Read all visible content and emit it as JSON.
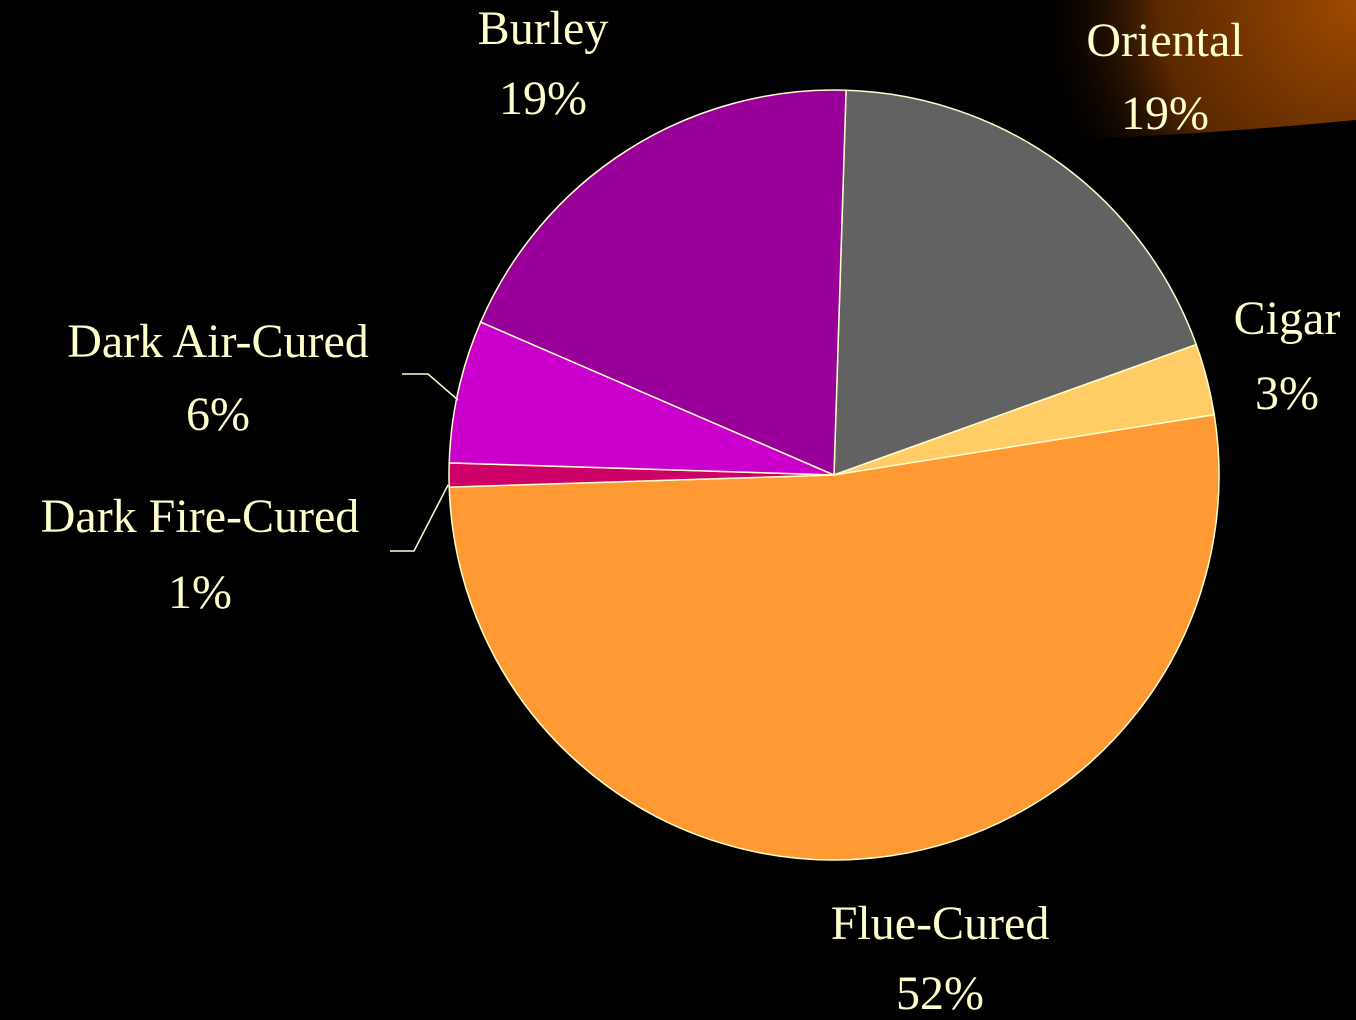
{
  "chart_data": {
    "type": "pie",
    "categories": [
      "Oriental",
      "Cigar",
      "Flue-Cured",
      "Dark Fire-Cured",
      "Dark Air-Cured",
      "Burley"
    ],
    "values": [
      19,
      3,
      52,
      1,
      6,
      19
    ],
    "value_labels": [
      "19%",
      "3%",
      "52%",
      "1%",
      "6%",
      "19%"
    ],
    "colors": [
      "#626262",
      "#ffcc66",
      "#ff9933",
      "#cc0066",
      "#cc00cc",
      "#990099"
    ]
  }
}
